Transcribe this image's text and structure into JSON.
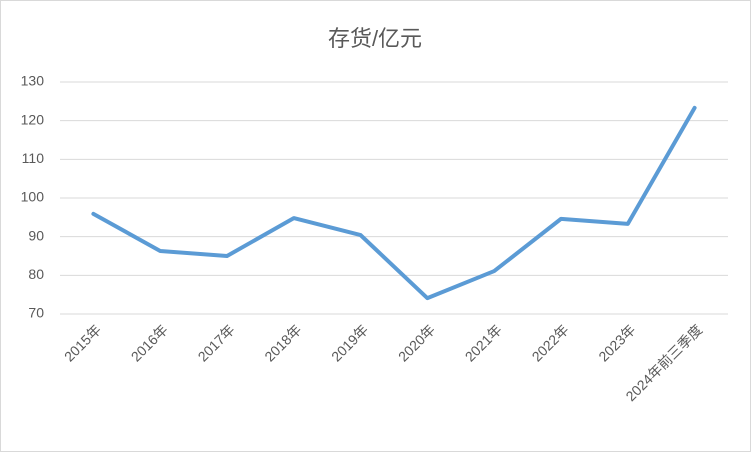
{
  "chart_data": {
    "type": "line",
    "title": "存货/亿元",
    "categories": [
      "2015年",
      "2016年",
      "2017年",
      "2018年",
      "2019年",
      "2020年",
      "2021年",
      "2022年",
      "2023年",
      "2024年前三季度"
    ],
    "series": [
      {
        "name": "存货",
        "color": "#5b9bd5",
        "values": [
          95.9,
          86.3,
          85.0,
          94.8,
          90.4,
          74.1,
          81.1,
          94.6,
          93.3,
          123.3
        ]
      }
    ],
    "ylim": [
      70,
      130
    ],
    "yticks": [
      70,
      80,
      90,
      100,
      110,
      120,
      130
    ],
    "grid": true
  }
}
